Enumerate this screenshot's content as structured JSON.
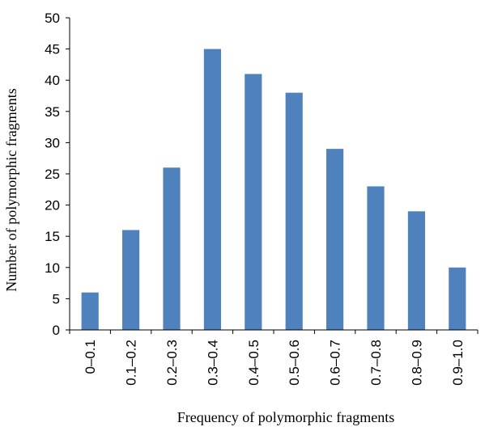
{
  "chart_data": {
    "type": "bar",
    "categories": [
      "0–0.1",
      "0.1–0.2",
      "0.2–0.3",
      "0.3–0.4",
      "0.4–0.5",
      "0.5–0.6",
      "0.6–0.7",
      "0.7–0.8",
      "0.8–0.9",
      "0.9–1.0"
    ],
    "values": [
      6,
      16,
      26,
      45,
      41,
      38,
      29,
      23,
      19,
      10
    ],
    "xlabel": "Frequency of polymorphic  fragments",
    "ylabel": "Number of polymorphic  fragments",
    "ylim": [
      0,
      50
    ],
    "yticks": [
      0,
      5,
      10,
      15,
      20,
      25,
      30,
      35,
      40,
      45,
      50
    ],
    "grid": false,
    "legend": "none",
    "bar_color": "#4f81bd"
  }
}
